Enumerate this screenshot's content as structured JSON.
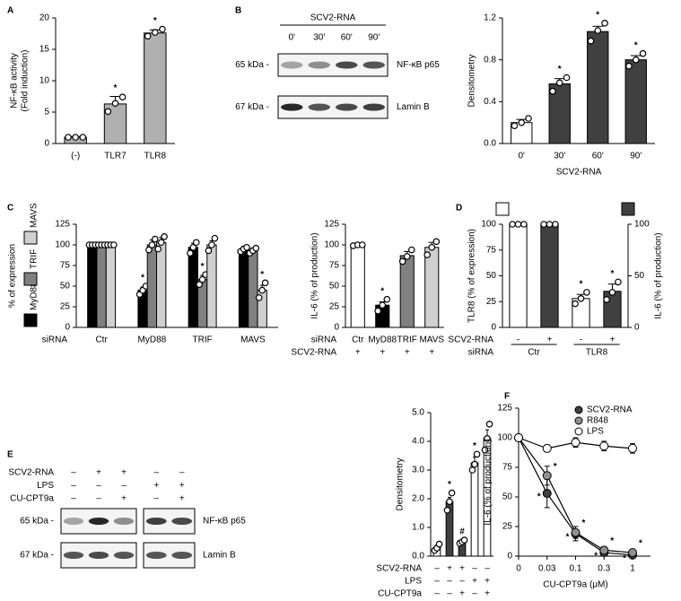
{
  "chart_data": [
    {
      "type": "bar",
      "panel": "A",
      "y_label": [
        "NF-κB activity",
        "(Fold induction)"
      ],
      "categories": [
        "(-)",
        "TLR7",
        "TLR8"
      ],
      "series": [
        {
          "color": "#b0b0b0",
          "values": [
            1,
            6.3,
            17.6
          ],
          "errors": [
            0.1,
            1.2,
            0.5
          ],
          "points": [
            [
              1,
              1,
              1
            ],
            [
              5.1,
              6.4,
              7.4
            ],
            [
              17.1,
              17.7,
              18.2
            ]
          ],
          "markers": [
            null,
            "*",
            "*"
          ]
        }
      ],
      "ylim": [
        0,
        20
      ],
      "yticks": [
        0,
        5,
        10,
        15,
        20
      ]
    },
    {
      "type": "bar",
      "y_label": [
        "Densitometry"
      ],
      "x_title": "SCV2-RNA",
      "categories": [
        "0'",
        "30'",
        "60'",
        "90'"
      ],
      "series": [
        {
          "colors": [
            "#ffffff",
            "#404040",
            "#404040",
            "#404040"
          ],
          "values": [
            0.2,
            0.57,
            1.07,
            0.8
          ],
          "errors": [
            0.03,
            0.05,
            0.05,
            0.04
          ],
          "points": [
            [
              0.17,
              0.2,
              0.24
            ],
            [
              0.5,
              0.58,
              0.63
            ],
            [
              0.98,
              1.08,
              1.15
            ],
            [
              0.74,
              0.8,
              0.86
            ]
          ],
          "markers": [
            null,
            "*",
            "*",
            "*"
          ]
        }
      ],
      "ylim": [
        0,
        1.2
      ],
      "yticks": [
        {
          "value": 0,
          "label": "0.0"
        },
        0.4,
        0.8,
        1.2
      ]
    },
    {
      "type": "bar",
      "panel": "C",
      "y_label": [
        "% of expression"
      ],
      "x_label": "siRNA",
      "legend": "left",
      "categories": [
        "Ctr",
        "MyD88",
        "TRIF",
        "MAVS"
      ],
      "series": [
        {
          "name": "MyD88",
          "color": "#000000",
          "values": [
            100,
            45,
            97,
            95
          ],
          "errors": [
            0,
            4,
            5,
            3
          ],
          "points": [
            [
              100,
              100,
              100
            ],
            [
              40,
              45,
              50
            ],
            [
              90,
              97,
              103
            ],
            [
              92,
              95,
              97
            ]
          ],
          "markers": [
            null,
            "*",
            null,
            null
          ]
        },
        {
          "name": "TRIF",
          "color": "#808080",
          "values": [
            100,
            100,
            58,
            93
          ],
          "errors": [
            0,
            6,
            5,
            3
          ],
          "points": [
            [
              100,
              100,
              100
            ],
            [
              94,
              100,
              107
            ],
            [
              52,
              58,
              64
            ],
            [
              90,
              93,
              96
            ]
          ],
          "markers": [
            null,
            null,
            "*",
            null
          ]
        },
        {
          "name": "MAVS",
          "color": "#d0d0d0",
          "values": [
            100,
            103,
            100,
            45
          ],
          "errors": [
            0,
            6,
            5,
            6
          ],
          "points": [
            [
              100,
              100,
              100
            ],
            [
              95,
              103,
              110
            ],
            [
              93,
              100,
              108
            ],
            [
              36,
              45,
              54
            ]
          ],
          "markers": [
            null,
            null,
            null,
            "*"
          ]
        }
      ],
      "ylim": [
        0,
        125
      ],
      "yticks": [
        0,
        25,
        50,
        75,
        100,
        125
      ]
    },
    {
      "type": "bar",
      "y_label": [
        "IL-6 (% of production)"
      ],
      "x_label": "siRNA",
      "categories": [
        "Ctr",
        "MyD88",
        "TRIF",
        "MAVS"
      ],
      "conditions": [
        {
          "label": "SCV2-RNA",
          "values": [
            "+",
            "+",
            "+",
            "+"
          ]
        }
      ],
      "series": [
        {
          "colors": [
            "#ffffff",
            "#000000",
            "#808080",
            "#d0d0d0"
          ],
          "values": [
            100,
            27,
            87,
            97
          ],
          "errors": [
            1,
            4,
            5,
            6
          ],
          "points": [
            [
              99,
              100,
              100
            ],
            [
              20,
              27,
              34
            ],
            [
              80,
              86,
              94
            ],
            [
              88,
              97,
              104
            ]
          ],
          "markers": [
            null,
            "*",
            null,
            null
          ]
        }
      ],
      "ylim": [
        0,
        125
      ],
      "yticks": [
        0,
        25,
        50,
        75,
        100,
        125
      ]
    },
    {
      "type": "bar",
      "panel": "D",
      "y_label": [
        "TLR8 (% of expression)"
      ],
      "y2_label": [
        "IL-6 (% of production)"
      ],
      "conditions": [
        {
          "label": "SCV2-RNA",
          "values": [
            "-",
            "+",
            "-",
            "+"
          ]
        }
      ],
      "groups": {
        "label": "siRNA",
        "names": [
          "Ctr",
          "TLR8"
        ]
      },
      "series": [
        {
          "color": "#ffffff",
          "values": [
            100,
            null,
            28,
            null
          ],
          "errors": [
            0,
            null,
            4,
            null
          ],
          "points": [
            [
              100,
              100,
              100
            ],
            null,
            [
              23,
              28,
              34
            ],
            null
          ],
          "markers": [
            null,
            null,
            "*",
            null
          ]
        },
        {
          "color": "#404040",
          "axis": "y2",
          "values": [
            null,
            100,
            null,
            35
          ],
          "errors": [
            null,
            0,
            null,
            7
          ],
          "points": [
            null,
            [
              100,
              100,
              100
            ],
            null,
            [
              27,
              34,
              44
            ]
          ],
          "markers": [
            null,
            null,
            null,
            "*"
          ]
        }
      ],
      "ylim": [
        0,
        100
      ],
      "yticks": [
        0,
        25,
        50,
        75,
        100
      ],
      "y2lim": [
        0,
        100
      ],
      "y2ticks": [
        0,
        50,
        100
      ]
    },
    {
      "type": "bar",
      "y_label": [
        "Densitometry"
      ],
      "conditions": [
        {
          "label": "SCV2-RNA",
          "values": [
            "–",
            "+",
            "+",
            "–",
            "–"
          ]
        },
        {
          "label": "LPS",
          "values": [
            "–",
            "–",
            "–",
            "+",
            "+"
          ]
        },
        {
          "label": "CU-CPT9a",
          "values": [
            "–",
            "–",
            "+",
            "–",
            "+"
          ]
        }
      ],
      "series": [
        {
          "colors": [
            "#ffffff",
            "#404040",
            "#404040",
            "#ffffff",
            "#ffffff"
          ],
          "values": [
            0.3,
            1.9,
            0.5,
            3.25,
            4.1
          ],
          "errors": [
            0.08,
            0.15,
            0.06,
            0.2,
            0.3
          ],
          "points": [
            [
              0.2,
              0.28,
              0.42
            ],
            [
              1.6,
              1.9,
              2.2
            ],
            [
              0.45,
              0.5,
              0.56
            ],
            [
              3,
              3.2,
              3.55
            ],
            [
              3.7,
              4.1,
              4.6
            ]
          ],
          "markers": [
            null,
            "*",
            "#",
            "*",
            null
          ]
        }
      ],
      "ylim": [
        0,
        5
      ],
      "yticks": [
        {
          "value": 0,
          "label": "0.0"
        },
        {
          "value": 1,
          "label": "1.0"
        },
        {
          "value": 2,
          "label": "2.0"
        },
        {
          "value": 3,
          "label": "3.0"
        },
        {
          "value": 4,
          "label": "4.0"
        },
        {
          "value": 5,
          "label": "5.0"
        }
      ]
    },
    {
      "type": "line",
      "panel": "F",
      "y_label": [
        "IL-6 (% of production)"
      ],
      "x_title": "CU-CPT9a (μM)",
      "categories": [
        "0",
        "0.03",
        "0.1",
        "0.3",
        "1"
      ],
      "legend": "upper right",
      "series": [
        {
          "name": "SCV2-RNA",
          "color": "#404040",
          "values": [
            100,
            53,
            19,
            3,
            1
          ],
          "errors": [
            0,
            12,
            6,
            3,
            2
          ],
          "markers": [
            null,
            "*",
            "*",
            "*",
            "*"
          ]
        },
        {
          "name": "R848",
          "color": "#909090",
          "values": [
            100,
            68,
            20,
            5,
            3
          ],
          "errors": [
            0,
            8,
            5,
            3,
            2
          ],
          "markers": [
            null,
            "*",
            "*",
            "*",
            "*"
          ]
        },
        {
          "name": "LPS",
          "color": "#ffffff",
          "values": [
            100,
            91,
            96,
            93,
            91
          ],
          "errors": [
            0,
            3,
            4,
            4,
            4
          ]
        }
      ],
      "ylim": [
        0,
        125
      ],
      "yticks": [
        0,
        25,
        50,
        75,
        100,
        125
      ]
    }
  ],
  "blots": [
    {
      "panel": "B",
      "header": "SCV2-RNA",
      "lanes": [
        "0'",
        "30'",
        "60'",
        "90'"
      ],
      "rows": [
        {
          "size": "65 kDa -",
          "protein": "NF-κB p65"
        },
        {
          "size": "67 kDa -",
          "protein": "Lamin B"
        }
      ]
    },
    {
      "panel": "E",
      "conditions": [
        {
          "label": "SCV2-RNA",
          "values": [
            "–",
            "+",
            "+",
            "–",
            "–"
          ]
        },
        {
          "label": "LPS",
          "values": [
            "–",
            "–",
            "–",
            "+",
            "+"
          ]
        },
        {
          "label": "CU-CPT9a",
          "values": [
            "–",
            "–",
            "+",
            "–",
            "+"
          ]
        }
      ],
      "rows": [
        {
          "size": "65 kDa -",
          "protein": "NF-κB p65"
        },
        {
          "size": "67 kDa -",
          "protein": "Lamin B"
        }
      ]
    }
  ]
}
